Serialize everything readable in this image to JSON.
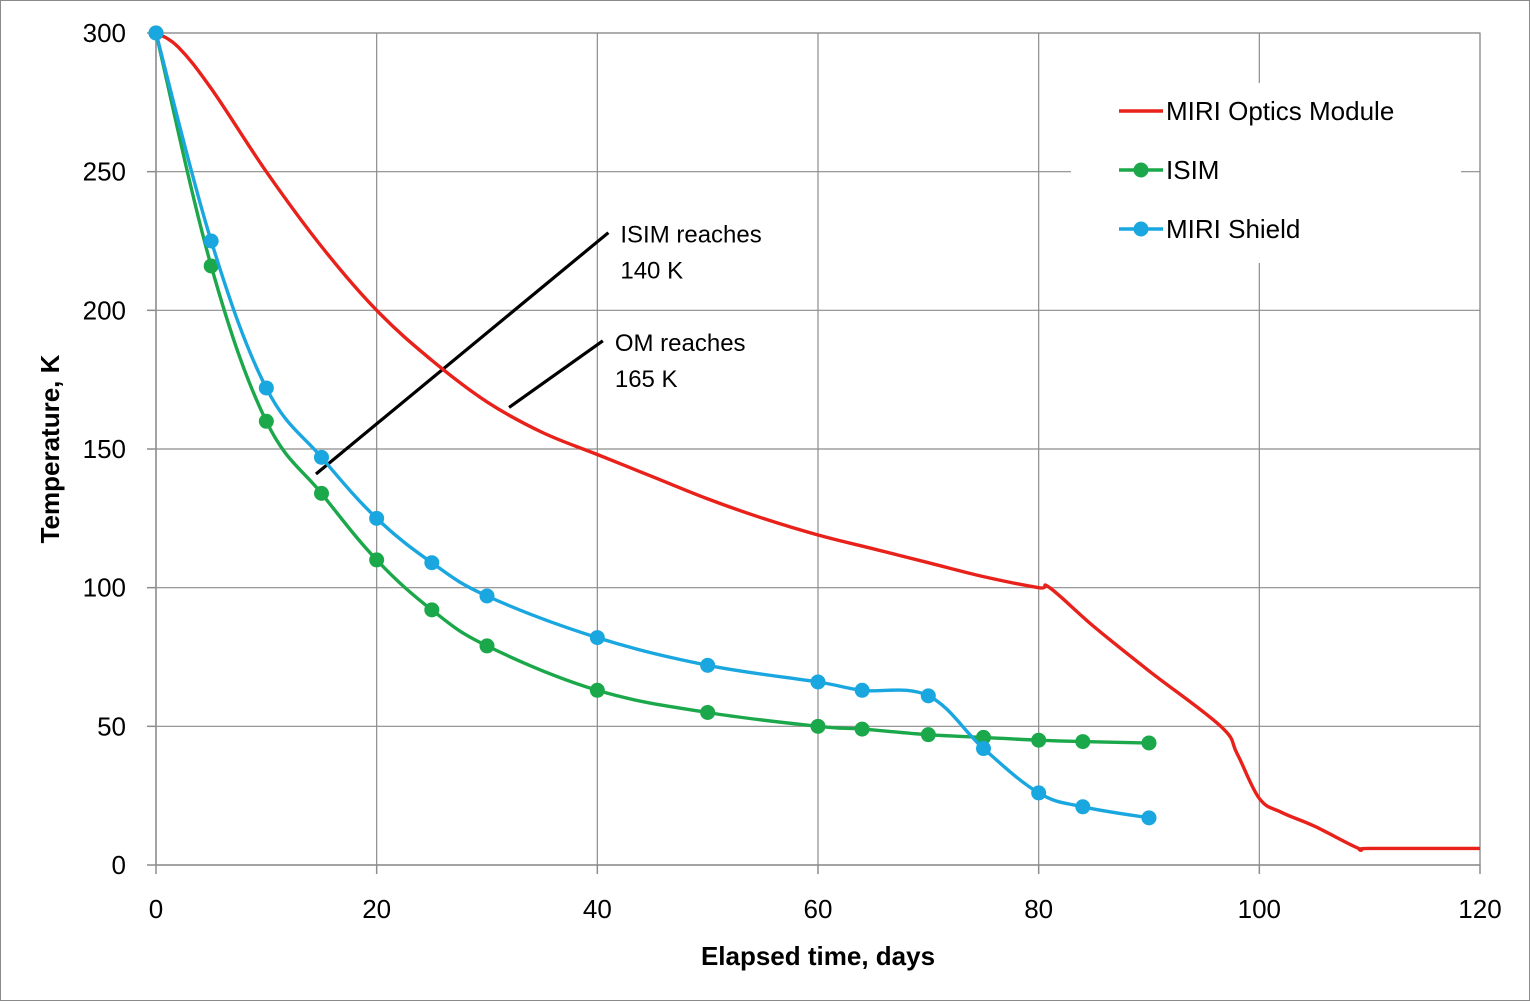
{
  "chart_data": {
    "type": "line",
    "title": "",
    "xlabel": "Elapsed time, days",
    "ylabel": "Temperature, K",
    "xlim": [
      0,
      120
    ],
    "ylim": [
      0,
      300
    ],
    "x_ticks": [
      0,
      20,
      40,
      60,
      80,
      100,
      120
    ],
    "x_tick_labels": [
      "0",
      "20",
      "40",
      "60",
      "80",
      "100",
      "120"
    ],
    "y_ticks": [
      0,
      50,
      100,
      150,
      200,
      250,
      300
    ],
    "y_tick_labels": [
      "0",
      "50",
      "100",
      "150",
      "200",
      "250",
      "300"
    ],
    "grid": true,
    "legend_position": "top-right",
    "series": [
      {
        "name": "MIRI Optics Module",
        "color": "#e8211b",
        "markers": false,
        "x": [
          0,
          2,
          5,
          10,
          15,
          20,
          25,
          30,
          35,
          40,
          45,
          50,
          55,
          60,
          65,
          70,
          75,
          80,
          81,
          85,
          90,
          96.5,
          98,
          100,
          102,
          105,
          109,
          110,
          120
        ],
        "y": [
          300,
          295,
          280,
          250,
          223,
          200,
          182,
          167,
          156,
          148,
          140,
          132,
          125,
          119,
          114,
          109,
          104,
          100,
          100,
          86,
          70,
          50,
          40,
          24,
          19,
          14,
          6,
          6,
          6
        ]
      },
      {
        "name": "ISIM",
        "color": "#1ba84a",
        "markers": true,
        "x": [
          0,
          5,
          10,
          15,
          20,
          25,
          30,
          40,
          50,
          60,
          64,
          70,
          75,
          80,
          84,
          90
        ],
        "y": [
          300,
          216,
          160,
          134,
          110,
          92,
          79,
          63,
          55,
          50,
          49,
          47,
          46,
          45,
          44.5,
          44
        ]
      },
      {
        "name": "MIRI Shield",
        "color": "#1aa7e0",
        "markers": true,
        "x": [
          0,
          5,
          10,
          15,
          20,
          25,
          30,
          40,
          50,
          60,
          64,
          70,
          75,
          80,
          84,
          90
        ],
        "y": [
          300,
          225,
          172,
          147,
          125,
          109,
          97,
          82,
          72,
          66,
          63,
          61,
          42,
          26,
          21,
          17
        ]
      }
    ],
    "annotations": [
      {
        "line1": "ISIM reaches",
        "line2": "140 K",
        "x_from": 14.5,
        "y_from": 141,
        "x_to": 41,
        "y_to": 228
      },
      {
        "line1": "OM reaches",
        "line2": "165 K",
        "x_from": 32,
        "y_from": 165,
        "x_to": 40.5,
        "y_to": 189
      }
    ]
  }
}
